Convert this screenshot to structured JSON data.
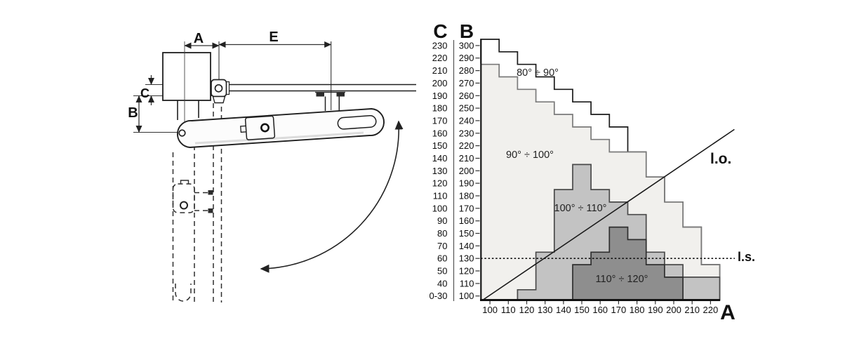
{
  "page": {
    "background": "#ffffff"
  },
  "diagram": {
    "description": "swing-gate operator installation side view with mounting dimensions",
    "dim_labels": {
      "a": "A",
      "e": "E",
      "c": "C",
      "b": "B"
    }
  },
  "chart_data": {
    "type": "area",
    "title": "",
    "x_axis": {
      "label": "A",
      "ticks": [
        100,
        110,
        120,
        130,
        140,
        150,
        160,
        170,
        180,
        190,
        200,
        210,
        220
      ]
    },
    "y_axis_b": {
      "label": "B",
      "ticks": [
        "300",
        "290",
        "280",
        "270",
        "260",
        "250",
        "240",
        "230",
        "220",
        "210",
        "200",
        "190",
        "180",
        "170",
        "160",
        "150",
        "140",
        "130",
        "120",
        "110",
        "100"
      ]
    },
    "y_axis_c": {
      "label": "C",
      "ticks": [
        "230",
        "220",
        "210",
        "200",
        "190",
        "180",
        "170",
        "160",
        "150",
        "140",
        "130",
        "120",
        "110",
        "100",
        "90",
        "80",
        "70",
        "60",
        "50",
        "40",
        "0-30"
      ]
    },
    "cell_size": {
      "a": 10,
      "b": 10
    },
    "grid": false,
    "regions": [
      {
        "name": "80-90",
        "label": "80° ÷ 90°",
        "fill": "#ffffff",
        "stroke": "#1a1a1a",
        "a_start": 100,
        "tops": [
          300,
          290,
          280,
          270,
          260,
          250,
          240,
          230,
          210,
          190,
          170,
          150,
          120
        ]
      },
      {
        "name": "90-100",
        "label": "90° ÷ 100°",
        "fill": "#f1f0ed",
        "stroke": "#7a7a7a",
        "a_start": 100,
        "tops": [
          280,
          270,
          260,
          250,
          240,
          230,
          220,
          210,
          210,
          190,
          170,
          150,
          120
        ]
      },
      {
        "name": "100-110",
        "label": "100° ÷ 110°",
        "fill": "#c3c3c3",
        "stroke": "#4a4a4a",
        "a_start": 120,
        "tops": [
          100,
          130,
          180,
          200,
          180,
          170,
          160,
          130,
          120,
          110,
          110
        ]
      },
      {
        "name": "110-120",
        "label": "110° ÷ 120°",
        "fill": "#8e8e8e",
        "stroke": "#2e2e2e",
        "a_start": 150,
        "tops": [
          120,
          130,
          150,
          140,
          120,
          110
        ]
      }
    ],
    "lines": {
      "lo": {
        "label": "l.o.",
        "equation": "B = A",
        "from_a": 95.5,
        "to_a": 233,
        "style": "solid"
      },
      "ls": {
        "label": "l.s.",
        "b": 130,
        "style": "dotted"
      }
    }
  }
}
